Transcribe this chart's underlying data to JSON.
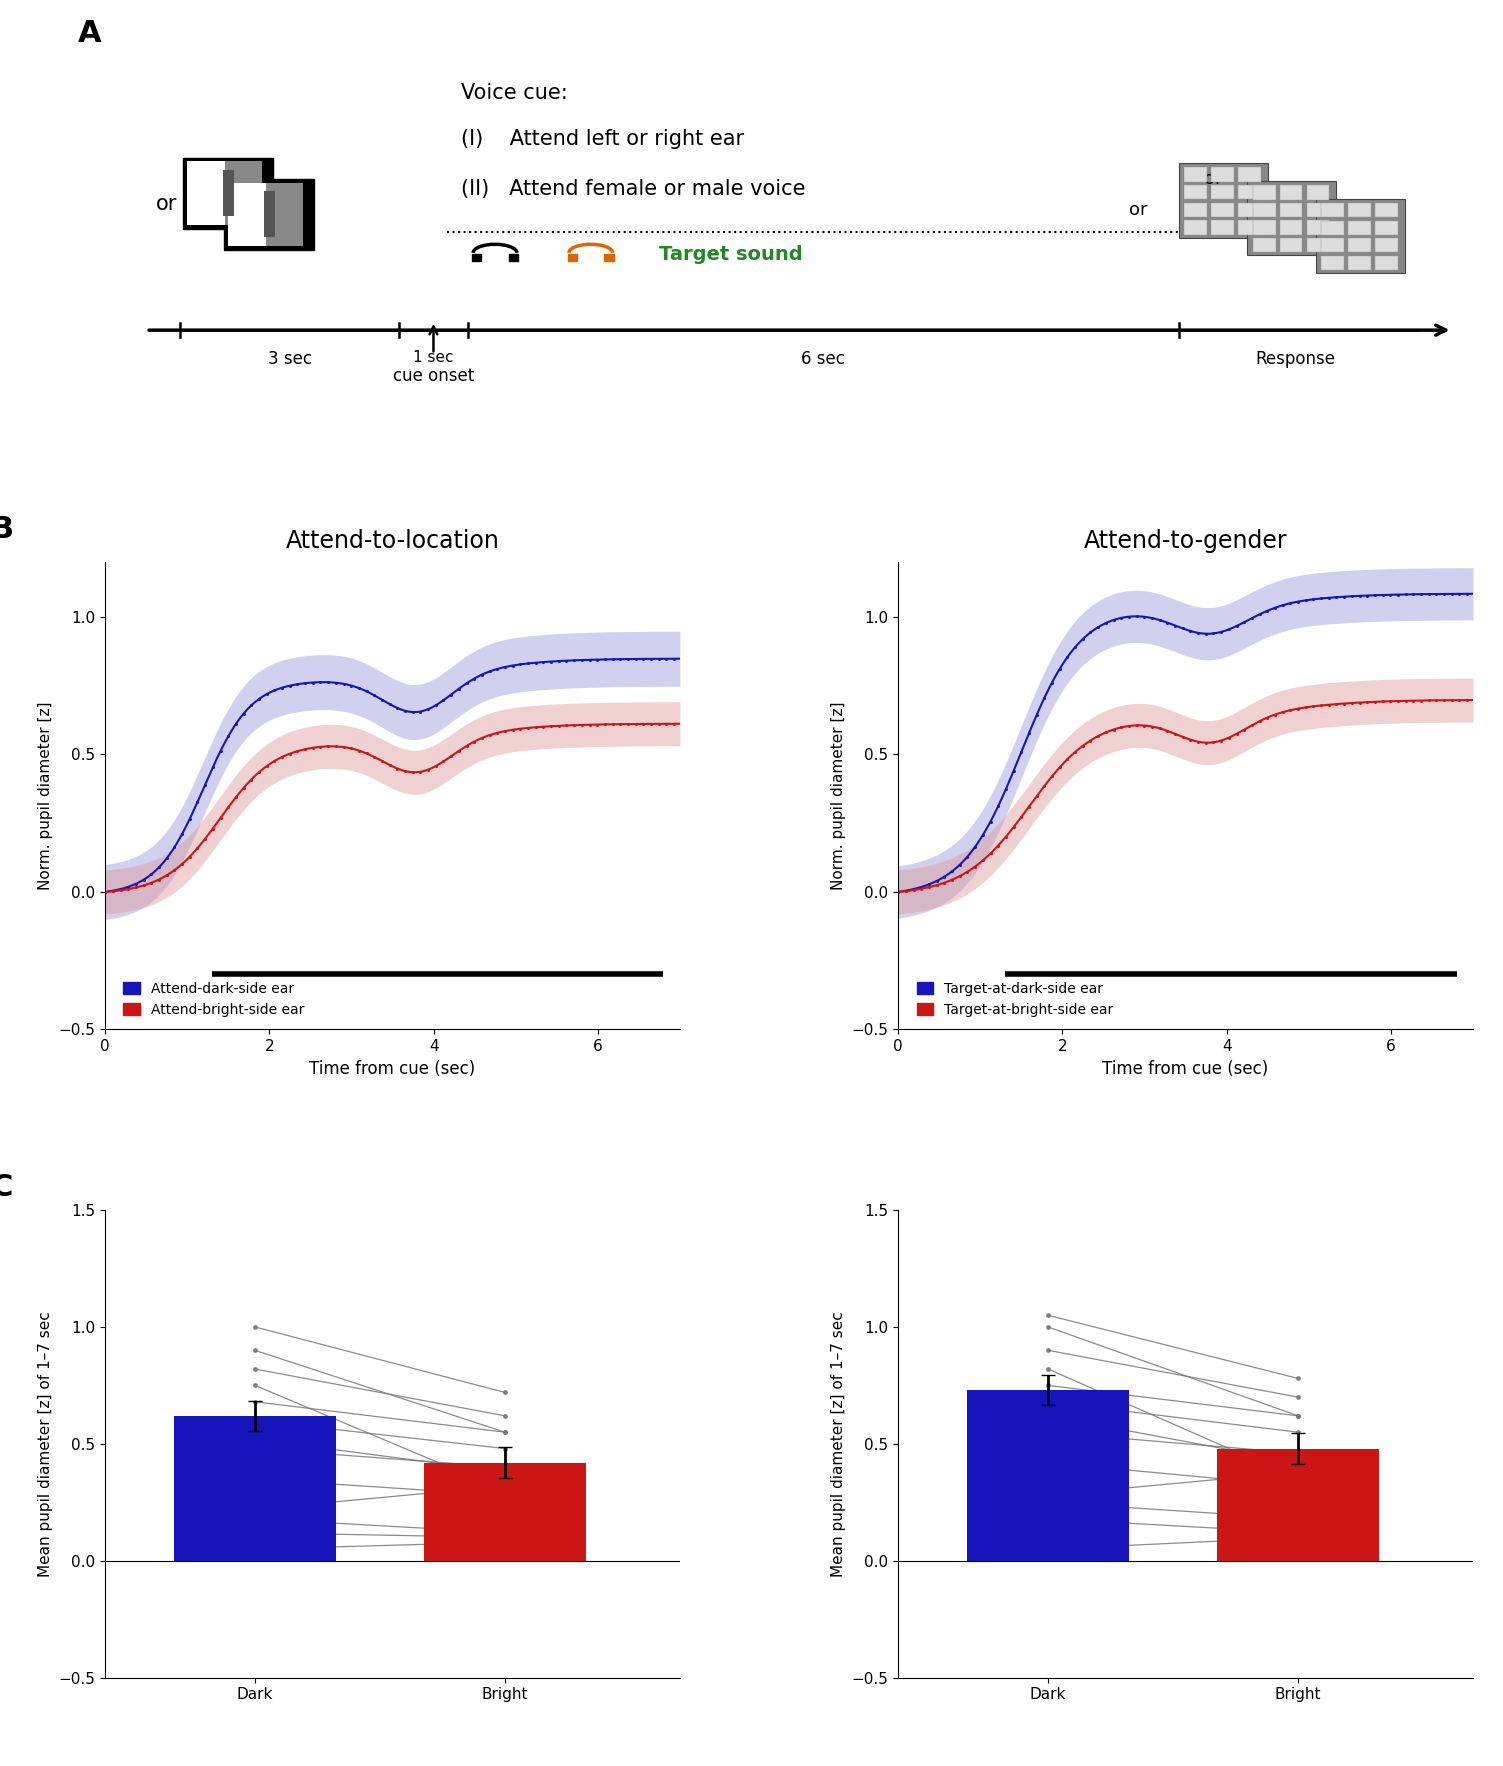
{
  "panel_B_left": {
    "title": "Attend-to-location",
    "xlabel": "Time from cue (sec)",
    "ylabel": "Norm. pupil diameter [z]",
    "ylim": [
      -0.5,
      1.2
    ],
    "yticks": [
      -0.5,
      0,
      0.5,
      1
    ],
    "xlim": [
      0,
      7
    ],
    "xticks": [
      0,
      2,
      4,
      6
    ],
    "blue_label": "Attend-dark-side ear",
    "red_label": "Attend-bright-side ear",
    "blue_color": "#1515BB",
    "red_color": "#CC1515",
    "blue_shade": "#9999DD",
    "red_shade": "#DD9999"
  },
  "panel_B_right": {
    "title": "Attend-to-gender",
    "xlabel": "Time from cue (sec)",
    "ylabel": "Norm. pupil diameter [z]",
    "ylim": [
      -0.5,
      1.2
    ],
    "yticks": [
      -0.5,
      0,
      0.5,
      1
    ],
    "xlim": [
      0,
      7
    ],
    "xticks": [
      0,
      2,
      4,
      6
    ],
    "blue_label": "Target-at-dark-side ear",
    "red_label": "Target-at-bright-side ear",
    "blue_color": "#1515BB",
    "red_color": "#CC1515",
    "blue_shade": "#9999DD",
    "red_shade": "#DD9999"
  },
  "panel_C_left": {
    "categories": [
      "Dark",
      "Bright"
    ],
    "blue_val": 0.62,
    "red_val": 0.42,
    "blue_err": 0.065,
    "red_err": 0.065,
    "ylabel": "Mean pupil diameter [z] of 1–7 sec",
    "ylim": [
      -0.5,
      1.5
    ],
    "yticks": [
      -0.5,
      0,
      0.5,
      1,
      1.5
    ],
    "blue_color": "#1515BB",
    "red_color": "#CC1515",
    "individual_dark": [
      0.05,
      0.12,
      0.22,
      0.35,
      0.48,
      0.52,
      0.6,
      0.68,
      0.75,
      0.82,
      0.9,
      1.0,
      0.18
    ],
    "individual_bright": [
      0.08,
      0.1,
      0.32,
      0.28,
      0.4,
      0.38,
      0.48,
      0.55,
      0.3,
      0.62,
      0.55,
      0.72,
      0.12
    ]
  },
  "panel_C_right": {
    "categories": [
      "Dark",
      "Bright"
    ],
    "blue_val": 0.73,
    "red_val": 0.48,
    "blue_err": 0.065,
    "red_err": 0.065,
    "ylabel": "Mean pupil diameter [z] of 1–7 sec",
    "ylim": [
      -0.5,
      1.5
    ],
    "yticks": [
      -0.5,
      0,
      0.5,
      1,
      1.5
    ],
    "blue_color": "#1515BB",
    "red_color": "#CC1515",
    "individual_dark": [
      0.05,
      0.18,
      0.28,
      0.42,
      0.55,
      0.62,
      0.68,
      0.75,
      0.82,
      0.9,
      1.0,
      1.05,
      0.25
    ],
    "individual_bright": [
      0.1,
      0.12,
      0.38,
      0.32,
      0.46,
      0.42,
      0.55,
      0.62,
      0.35,
      0.7,
      0.62,
      0.78,
      0.18
    ]
  },
  "panel_A": {
    "voice_cue_text": "Voice cue:",
    "line1": "(I)    Attend left or right ear",
    "line2": "(II)   Attend female or male voice",
    "target_sound": "Target sound",
    "timing": [
      "3 sec",
      "1 sec",
      "6 sec",
      "Response"
    ],
    "cue_onset": "cue onset"
  }
}
